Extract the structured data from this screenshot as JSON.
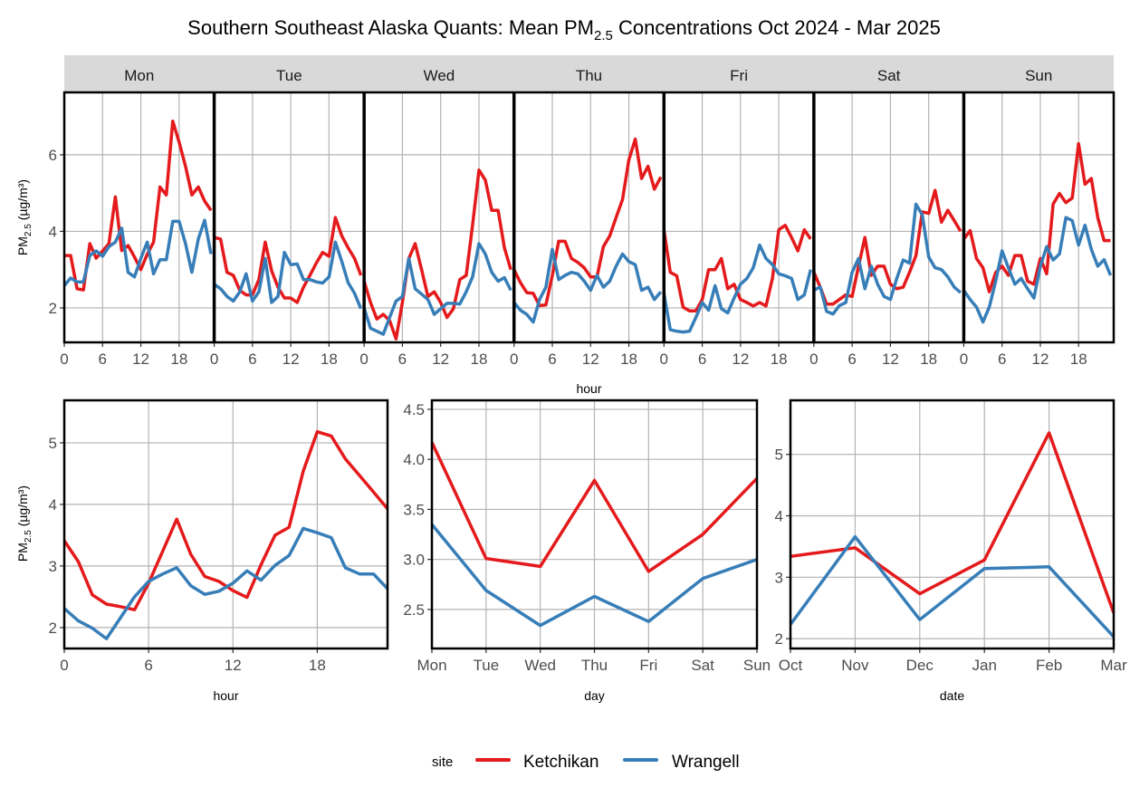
{
  "chart_data": {
    "title": {
      "prefix": "Southern Southeast Alaska Quants: Mean PM",
      "sub": "2.5",
      "suffix": " Concentrations Oct 2024 - Mar 2025"
    },
    "ylabel": {
      "prefix": "PM",
      "sub": "2.5",
      "suffix": " (µg/m³)"
    },
    "colors": {
      "Ketchikan": "#e41a1c",
      "Wrangell": "#377eb8"
    },
    "legend": {
      "title": "site",
      "entries": [
        "Ketchikan",
        "Wrangell"
      ],
      "placement": "bottom"
    },
    "panels": [
      {
        "id": "hour-by-day",
        "type": "line",
        "xlabel": "hour",
        "ylabel_shown": true,
        "facets": [
          "Mon",
          "Tue",
          "Wed",
          "Thu",
          "Fri",
          "Sat",
          "Sun"
        ],
        "xlim": [
          0,
          23.5
        ],
        "ylim": [
          1.1,
          7.63
        ],
        "xticks": [
          0,
          6,
          12,
          18
        ],
        "yticks": [
          2,
          4,
          6
        ],
        "grid": true,
        "series": [
          {
            "name": "Ketchikan",
            "values": [
              [
                3.37,
                3.37,
                2.5,
                2.47,
                3.68,
                3.3,
                3.49,
                3.68,
                4.9,
                3.5,
                3.63,
                3.33,
                3.0,
                3.4,
                3.72,
                5.16,
                4.95,
                6.88,
                6.33,
                5.7,
                4.95,
                5.16,
                4.79,
                4.55
              ],
              [
                3.84,
                3.8,
                2.93,
                2.85,
                2.46,
                2.34,
                2.34,
                2.74,
                3.72,
                2.97,
                2.54,
                2.26,
                2.26,
                2.14,
                2.54,
                2.85,
                3.17,
                3.45,
                3.35,
                4.36,
                3.88,
                3.57,
                3.29,
                2.85
              ],
              [
                2.7,
                2.14,
                1.71,
                1.83,
                1.67,
                1.19,
                2.14,
                3.29,
                3.68,
                3.0,
                2.3,
                2.42,
                2.14,
                1.75,
                1.98,
                2.74,
                2.85,
                4.16,
                5.6,
                5.34,
                4.55,
                4.55,
                3.57,
                3.0
              ],
              [
                3.0,
                2.66,
                2.4,
                2.38,
                2.06,
                2.08,
                2.85,
                3.74,
                3.74,
                3.29,
                3.19,
                3.05,
                2.81,
                2.81,
                3.6,
                3.88,
                4.36,
                4.83,
                5.86,
                6.41,
                5.38,
                5.7,
                5.1,
                5.42
              ],
              [
                4.04,
                2.93,
                2.84,
                2.02,
                1.92,
                1.92,
                2.22,
                3.0,
                3.0,
                3.29,
                2.5,
                2.62,
                2.22,
                2.14,
                2.05,
                2.14,
                2.05,
                2.77,
                4.04,
                4.16,
                3.84,
                3.49,
                4.04,
                3.8
              ],
              [
                2.93,
                2.54,
                2.1,
                2.1,
                2.22,
                2.34,
                2.3,
                3.09,
                3.84,
                2.85,
                3.09,
                3.09,
                2.62,
                2.5,
                2.54,
                2.93,
                3.37,
                4.51,
                4.47,
                5.07,
                4.24,
                4.55,
                4.28,
                4.0
              ],
              [
                3.8,
                4.02,
                3.29,
                3.05,
                2.42,
                2.93,
                3.09,
                2.85,
                3.37,
                3.37,
                2.7,
                2.62,
                3.29,
                2.89,
                4.71,
                4.99,
                4.75,
                4.87,
                6.29,
                5.23,
                5.38,
                4.36,
                3.76,
                3.76
              ]
            ]
          },
          {
            "name": "Wrangell",
            "values": [
              [
                2.58,
                2.78,
                2.68,
                2.68,
                3.37,
                3.49,
                3.35,
                3.6,
                3.72,
                4.08,
                2.93,
                2.81,
                3.29,
                3.72,
                2.89,
                3.26,
                3.26,
                4.26,
                4.26,
                3.68,
                2.93,
                3.8,
                4.29,
                3.41
              ],
              [
                2.62,
                2.5,
                2.3,
                2.18,
                2.42,
                2.89,
                2.18,
                2.42,
                3.29,
                2.14,
                2.3,
                3.45,
                3.13,
                3.15,
                2.74,
                2.74,
                2.68,
                2.65,
                2.81,
                3.72,
                3.21,
                2.66,
                2.38,
                1.98
              ],
              [
                2.0,
                1.47,
                1.39,
                1.31,
                1.75,
                2.18,
                2.3,
                3.29,
                2.5,
                2.36,
                2.22,
                1.83,
                1.98,
                2.12,
                2.12,
                2.1,
                2.42,
                2.81,
                3.68,
                3.41,
                2.93,
                2.7,
                2.79,
                2.46
              ],
              [
                2.14,
                1.94,
                1.83,
                1.63,
                2.22,
                2.54,
                3.53,
                2.74,
                2.85,
                2.93,
                2.89,
                2.7,
                2.46,
                2.85,
                2.54,
                2.7,
                3.09,
                3.41,
                3.21,
                3.13,
                2.46,
                2.54,
                2.22,
                2.42
              ],
              [
                2.38,
                1.43,
                1.39,
                1.37,
                1.39,
                1.75,
                2.14,
                1.94,
                2.58,
                1.98,
                1.87,
                2.26,
                2.62,
                2.77,
                3.05,
                3.64,
                3.29,
                3.13,
                2.89,
                2.84,
                2.77,
                2.22,
                2.34,
                3.0
              ],
              [
                2.46,
                2.55,
                1.91,
                1.84,
                2.06,
                2.14,
                2.93,
                3.29,
                2.5,
                3.09,
                2.62,
                2.3,
                2.22,
                2.77,
                3.25,
                3.17,
                4.71,
                4.43,
                3.33,
                3.05,
                3.0,
                2.81,
                2.54,
                2.4
              ],
              [
                2.46,
                2.22,
                2.02,
                1.63,
                2.02,
                2.7,
                3.49,
                3.05,
                2.62,
                2.77,
                2.5,
                2.26,
                3.09,
                3.6,
                3.25,
                3.41,
                4.36,
                4.28,
                3.64,
                4.16,
                3.53,
                3.09,
                3.26,
                2.85
              ]
            ]
          }
        ]
      },
      {
        "id": "hour",
        "type": "line",
        "xlabel": "hour",
        "ylabel_shown": true,
        "x": [
          0,
          1,
          2,
          3,
          4,
          5,
          6,
          7,
          8,
          9,
          10,
          11,
          12,
          13,
          14,
          15,
          16,
          17,
          18,
          19,
          20,
          21,
          22,
          23
        ],
        "xlim": [
          0,
          23
        ],
        "ylim": [
          1.66,
          5.69
        ],
        "xticks": [
          0,
          6,
          12,
          18
        ],
        "yticks": [
          2,
          3,
          4,
          5
        ],
        "grid": true,
        "series": [
          {
            "name": "Ketchikan",
            "values": [
              3.41,
              3.07,
              2.53,
              2.38,
              2.34,
              2.29,
              2.72,
              3.24,
              3.76,
              3.19,
              2.83,
              2.75,
              2.6,
              2.49,
              3.02,
              3.5,
              3.63,
              4.54,
              5.18,
              5.11,
              4.74,
              4.47,
              4.2,
              3.93
            ]
          },
          {
            "name": "Wrangell",
            "values": [
              2.31,
              2.11,
              1.99,
              1.82,
              2.16,
              2.5,
              2.75,
              2.87,
              2.97,
              2.68,
              2.54,
              2.59,
              2.72,
              2.92,
              2.77,
              3.01,
              3.17,
              3.61,
              3.54,
              3.46,
              2.97,
              2.87,
              2.87,
              2.63
            ]
          }
        ]
      },
      {
        "id": "day",
        "type": "line",
        "xlabel": "day",
        "categories": [
          "Mon",
          "Tue",
          "Wed",
          "Thu",
          "Fri",
          "Sat",
          "Sun"
        ],
        "ylim": [
          2.11,
          4.59
        ],
        "yticks": [
          2.5,
          3.0,
          3.5,
          4.0,
          4.5
        ],
        "ytick_labels": [
          "2.5",
          "3.0",
          "3.5",
          "4.0",
          "4.5"
        ],
        "grid": true,
        "series": [
          {
            "name": "Ketchikan",
            "values": [
              4.17,
              3.01,
              2.93,
              3.79,
              2.88,
              3.25,
              3.81
            ]
          },
          {
            "name": "Wrangell",
            "values": [
              3.35,
              2.69,
              2.34,
              2.63,
              2.38,
              2.81,
              3.0
            ]
          }
        ]
      },
      {
        "id": "month",
        "type": "line",
        "xlabel": "date",
        "categories": [
          "Oct",
          "Nov",
          "Dec",
          "Jan",
          "Feb",
          "Mar"
        ],
        "ylim": [
          1.84,
          5.88
        ],
        "yticks": [
          2,
          3,
          4,
          5
        ],
        "grid": true,
        "series": [
          {
            "name": "Ketchikan",
            "values": [
              3.34,
              3.48,
              2.73,
              3.28,
              5.35,
              2.42
            ]
          },
          {
            "name": "Wrangell",
            "values": [
              2.23,
              3.66,
              2.31,
              3.14,
              3.17,
              2.03
            ]
          }
        ]
      }
    ]
  }
}
